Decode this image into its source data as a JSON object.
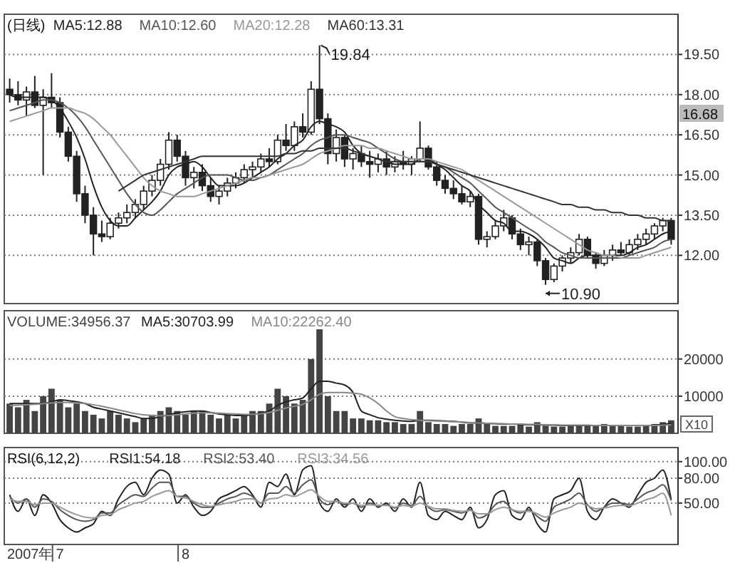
{
  "chart_data": [
    {
      "type": "candlestick",
      "title": "(日线)",
      "categories": [
        null,
        null,
        null,
        null,
        null,
        null,
        null,
        null,
        null,
        null,
        null,
        null,
        null,
        null,
        null,
        null,
        null,
        null,
        null,
        null,
        null,
        null,
        null,
        null,
        null,
        null,
        null,
        null,
        null,
        null,
        null,
        null,
        null,
        null,
        null,
        null,
        null,
        null,
        null,
        null,
        null,
        null,
        null,
        null,
        null,
        null,
        null,
        null,
        null,
        null,
        null,
        null,
        null,
        null,
        null,
        null,
        null,
        null,
        null,
        null,
        null,
        null,
        null,
        null,
        null,
        null,
        null,
        null,
        null,
        null,
        null,
        null,
        null,
        null,
        null,
        null,
        null,
        null,
        null,
        null
      ],
      "ohlc": [
        [
          18.2,
          18.6,
          17.7,
          18.0
        ],
        [
          18.0,
          18.5,
          17.6,
          17.8
        ],
        [
          17.8,
          18.3,
          17.2,
          18.1
        ],
        [
          18.1,
          18.7,
          17.5,
          17.6
        ],
        [
          17.6,
          18.2,
          15.0,
          17.9
        ],
        [
          17.9,
          18.8,
          17.5,
          17.7
        ],
        [
          17.7,
          17.9,
          16.4,
          16.6
        ],
        [
          16.6,
          16.8,
          15.5,
          15.7
        ],
        [
          15.7,
          15.9,
          14.0,
          14.3
        ],
        [
          14.3,
          14.6,
          13.2,
          13.5
        ],
        [
          13.5,
          13.8,
          12.0,
          12.8
        ],
        [
          12.8,
          13.3,
          12.5,
          12.7
        ],
        [
          12.7,
          13.4,
          12.6,
          13.2
        ],
        [
          13.2,
          13.6,
          13.0,
          13.4
        ],
        [
          13.4,
          13.9,
          13.2,
          13.6
        ],
        [
          13.6,
          14.1,
          13.4,
          13.9
        ],
        [
          13.9,
          14.6,
          13.7,
          14.4
        ],
        [
          14.4,
          15.0,
          14.2,
          14.8
        ],
        [
          14.8,
          15.6,
          14.6,
          15.4
        ],
        [
          15.4,
          16.6,
          15.2,
          16.3
        ],
        [
          16.3,
          16.5,
          15.5,
          15.7
        ],
        [
          15.7,
          15.9,
          14.6,
          14.9
        ],
        [
          14.9,
          15.3,
          14.5,
          15.1
        ],
        [
          15.1,
          15.4,
          14.4,
          14.6
        ],
        [
          14.6,
          14.9,
          14.0,
          14.2
        ],
        [
          14.2,
          14.6,
          13.9,
          14.4
        ],
        [
          14.4,
          14.9,
          14.2,
          14.7
        ],
        [
          14.7,
          15.1,
          14.5,
          14.9
        ],
        [
          14.9,
          15.4,
          14.7,
          15.2
        ],
        [
          15.2,
          15.5,
          14.9,
          15.3
        ],
        [
          15.3,
          15.8,
          15.1,
          15.6
        ],
        [
          15.6,
          16.0,
          15.3,
          15.5
        ],
        [
          15.5,
          16.5,
          15.4,
          16.3
        ],
        [
          16.3,
          16.9,
          15.9,
          16.1
        ],
        [
          16.1,
          17.0,
          15.9,
          16.8
        ],
        [
          16.8,
          17.3,
          16.4,
          16.6
        ],
        [
          16.6,
          18.5,
          16.5,
          18.2
        ],
        [
          18.2,
          19.84,
          16.9,
          17.1
        ],
        [
          17.1,
          17.3,
          15.4,
          15.8
        ],
        [
          15.8,
          16.7,
          15.5,
          16.4
        ],
        [
          16.4,
          16.5,
          15.3,
          15.6
        ],
        [
          15.6,
          16.0,
          15.2,
          15.8
        ],
        [
          15.8,
          16.1,
          15.3,
          15.5
        ],
        [
          15.5,
          15.9,
          14.9,
          15.4
        ],
        [
          15.4,
          15.8,
          15.1,
          15.6
        ],
        [
          15.6,
          15.9,
          15.0,
          15.3
        ],
        [
          15.3,
          15.7,
          15.1,
          15.5
        ],
        [
          15.5,
          15.9,
          15.2,
          15.4
        ],
        [
          15.4,
          15.7,
          15.0,
          15.6
        ],
        [
          15.6,
          17.0,
          15.5,
          16.0
        ],
        [
          16.0,
          16.1,
          15.2,
          15.3
        ],
        [
          15.3,
          15.5,
          14.6,
          14.8
        ],
        [
          14.8,
          15.0,
          14.3,
          14.5
        ],
        [
          14.5,
          14.8,
          14.1,
          14.3
        ],
        [
          14.3,
          14.6,
          13.9,
          14.0
        ],
        [
          14.0,
          14.4,
          13.8,
          14.2
        ],
        [
          14.2,
          14.3,
          12.4,
          12.6
        ],
        [
          12.6,
          12.9,
          12.3,
          12.7
        ],
        [
          12.7,
          13.3,
          12.6,
          13.1
        ],
        [
          13.1,
          13.7,
          12.9,
          13.4
        ],
        [
          13.4,
          13.5,
          12.6,
          12.8
        ],
        [
          12.8,
          13.0,
          12.2,
          12.4
        ],
        [
          12.4,
          12.7,
          12.0,
          12.5
        ],
        [
          12.5,
          12.6,
          11.6,
          11.8
        ],
        [
          11.8,
          11.9,
          10.9,
          11.1
        ],
        [
          11.1,
          11.7,
          11.0,
          11.6
        ],
        [
          11.6,
          12.0,
          11.4,
          11.9
        ],
        [
          11.9,
          12.3,
          11.7,
          12.1
        ],
        [
          12.1,
          12.8,
          12.0,
          12.6
        ],
        [
          12.6,
          12.7,
          11.9,
          12.0
        ],
        [
          12.0,
          12.1,
          11.5,
          11.7
        ],
        [
          11.7,
          12.2,
          11.6,
          12.0
        ],
        [
          12.0,
          12.4,
          11.8,
          12.2
        ],
        [
          12.2,
          12.5,
          12.0,
          12.1
        ],
        [
          12.1,
          12.6,
          12.0,
          12.4
        ],
        [
          12.4,
          12.8,
          12.2,
          12.6
        ],
        [
          12.6,
          13.0,
          12.4,
          12.8
        ],
        [
          12.8,
          13.2,
          12.6,
          13.1
        ],
        [
          13.1,
          13.4,
          12.9,
          13.3
        ],
        [
          13.3,
          13.4,
          12.4,
          12.6
        ]
      ],
      "series": [
        {
          "type": "line",
          "name": "MA5:12.88",
          "color": "#222222",
          "values": [
            18.0,
            17.9,
            17.9,
            17.9,
            17.9,
            17.8,
            17.5,
            17.0,
            16.4,
            15.6,
            14.6,
            13.8,
            13.3,
            13.1,
            13.1,
            13.4,
            13.7,
            14.0,
            14.4,
            15.0,
            15.3,
            15.4,
            15.5,
            15.3,
            14.9,
            14.6,
            14.6,
            14.6,
            14.7,
            14.9,
            15.1,
            15.3,
            15.6,
            15.8,
            16.1,
            16.3,
            16.8,
            17.0,
            16.9,
            16.8,
            16.6,
            16.1,
            15.8,
            15.7,
            15.6,
            15.5,
            15.4,
            15.4,
            15.4,
            15.6,
            15.6,
            15.4,
            15.2,
            14.9,
            14.6,
            14.4,
            13.9,
            13.6,
            13.3,
            13.2,
            12.9,
            12.9,
            12.8,
            12.6,
            12.3,
            11.9,
            11.8,
            11.7,
            11.9,
            12.0,
            12.0,
            12.0,
            12.0,
            12.0,
            12.1,
            12.3,
            12.4,
            12.6,
            12.8,
            12.9
          ]
        },
        {
          "type": "line",
          "name": "MA10:12.60",
          "color": "#555555",
          "values": [
            17.4,
            17.5,
            17.6,
            17.7,
            17.8,
            17.8,
            17.7,
            17.5,
            17.2,
            16.8,
            16.3,
            15.8,
            15.3,
            14.8,
            14.3,
            13.9,
            13.6,
            13.5,
            13.7,
            14.0,
            14.3,
            14.5,
            14.7,
            14.9,
            15.0,
            15.0,
            15.0,
            14.9,
            14.8,
            14.8,
            14.9,
            15.0,
            15.2,
            15.4,
            15.6,
            15.8,
            16.1,
            16.3,
            16.4,
            16.5,
            16.5,
            16.4,
            16.3,
            16.2,
            16.0,
            15.8,
            15.6,
            15.5,
            15.5,
            15.5,
            15.5,
            15.4,
            15.3,
            15.1,
            14.9,
            14.7,
            14.4,
            14.1,
            13.8,
            13.6,
            13.4,
            13.2,
            13.0,
            12.8,
            12.5,
            12.3,
            12.1,
            12.0,
            11.9,
            11.9,
            11.9,
            11.9,
            11.9,
            11.9,
            12.0,
            12.1,
            12.2,
            12.3,
            12.5,
            12.6
          ]
        },
        {
          "type": "line",
          "name": "MA20:12.28",
          "color": "#999999",
          "values": [
            17.0,
            17.1,
            17.2,
            17.3,
            17.4,
            17.5,
            17.5,
            17.5,
            17.4,
            17.3,
            17.1,
            16.8,
            16.5,
            16.1,
            15.7,
            15.3,
            14.9,
            14.6,
            14.4,
            14.3,
            14.2,
            14.2,
            14.2,
            14.3,
            14.4,
            14.5,
            14.6,
            14.7,
            14.8,
            14.9,
            14.9,
            15.0,
            15.1,
            15.2,
            15.3,
            15.4,
            15.6,
            15.8,
            15.9,
            16.0,
            16.1,
            16.1,
            16.1,
            16.0,
            16.0,
            15.9,
            15.8,
            15.7,
            15.6,
            15.6,
            15.6,
            15.5,
            15.4,
            15.3,
            15.2,
            15.0,
            14.8,
            14.6,
            14.4,
            14.2,
            14.0,
            13.8,
            13.6,
            13.4,
            13.2,
            13.0,
            12.8,
            12.6,
            12.4,
            12.2,
            12.1,
            12.0,
            12.0,
            11.9,
            11.9,
            11.9,
            12.0,
            12.1,
            12.2,
            12.3
          ]
        },
        {
          "type": "line",
          "name": "MA60:13.31",
          "color": "#333333",
          "values": [
            null,
            null,
            null,
            null,
            null,
            null,
            null,
            null,
            null,
            null,
            null,
            null,
            null,
            14.4,
            14.6,
            14.8,
            15.0,
            15.1,
            15.2,
            15.3,
            15.4,
            15.5,
            15.6,
            15.7,
            15.7,
            15.7,
            15.7,
            15.7,
            15.7,
            15.7,
            15.7,
            15.7,
            15.7,
            15.8,
            15.8,
            15.9,
            15.9,
            16.0,
            16.0,
            16.0,
            16.0,
            15.9,
            15.8,
            15.7,
            15.6,
            15.5,
            15.5,
            15.5,
            15.5,
            15.5,
            15.5,
            15.4,
            15.3,
            15.2,
            15.1,
            15.0,
            14.9,
            14.8,
            14.7,
            14.6,
            14.5,
            14.4,
            14.3,
            14.2,
            14.1,
            14.0,
            13.9,
            13.9,
            13.8,
            13.8,
            13.7,
            13.7,
            13.6,
            13.6,
            13.5,
            13.5,
            13.4,
            13.4,
            13.3,
            13.3
          ]
        }
      ],
      "ylim": [
        10.2,
        21.0
      ],
      "yticks": [
        {
          "value": 12,
          "label": "12.00"
        },
        {
          "value": 13.5,
          "label": "13.50"
        },
        {
          "value": 15,
          "label": "15.00"
        },
        {
          "value": 16.5,
          "label": "16.50"
        },
        {
          "value": 18,
          "label": "18.00"
        },
        {
          "value": 19.5,
          "label": "19.50"
        }
      ],
      "grid": "y",
      "legend": "top left",
      "tick_labels": "y",
      "annotations": [
        "19.84",
        "10.90",
        "16.68"
      ]
    },
    {
      "type": "bar",
      "categories": [
        null,
        null,
        null,
        null,
        null,
        null,
        null,
        null,
        null,
        null,
        null,
        null,
        null,
        null,
        null,
        null,
        null,
        null,
        null,
        null,
        null,
        null,
        null,
        null,
        null,
        null,
        null,
        null,
        null,
        null,
        null,
        null,
        null,
        null,
        null,
        null,
        null,
        null,
        null,
        null,
        null,
        null,
        null,
        null,
        null,
        null,
        null,
        null,
        null,
        null,
        null,
        null,
        null,
        null,
        null,
        null,
        null,
        null,
        null,
        null,
        null,
        null,
        null,
        null,
        null,
        null,
        null,
        null,
        null,
        null,
        null,
        null,
        null,
        null,
        null,
        null,
        null,
        null,
        null,
        null
      ],
      "series": [
        {
          "name": "VOLUME:34956.37",
          "color": "#444444",
          "values": [
            8000,
            7000,
            9000,
            6000,
            10000,
            12000,
            9000,
            7000,
            8000,
            6000,
            5000,
            4000,
            6000,
            5000,
            4000,
            3000,
            4000,
            5000,
            6000,
            7000,
            6000,
            5000,
            6000,
            6000,
            5000,
            4000,
            5000,
            4000,
            5000,
            6000,
            6000,
            8000,
            12000,
            10000,
            8000,
            9000,
            20000,
            28000,
            10000,
            6000,
            6000,
            4000,
            4000,
            3500,
            3500,
            3000,
            3000,
            2500,
            2500,
            6000,
            3000,
            2500,
            2500,
            2000,
            2500,
            2500,
            4000,
            2500,
            2000,
            2000,
            2000,
            2500,
            1800,
            3000,
            2000,
            1800,
            1800,
            2000,
            2200,
            2000,
            2000,
            2500,
            2200,
            2000,
            1800,
            1800,
            2000,
            2500,
            3000,
            3500
          ]
        },
        {
          "type": "line",
          "name": "MA5:30703.99",
          "color": "#222222",
          "values": [
            8000,
            8000,
            8000,
            8000,
            8000,
            8500,
            9000,
            8800,
            8500,
            8000,
            7000,
            6500,
            6000,
            5500,
            5000,
            4500,
            4000,
            4000,
            4500,
            5000,
            5500,
            5800,
            6000,
            6000,
            5600,
            5200,
            5000,
            4800,
            4800,
            5000,
            5500,
            6000,
            7500,
            8500,
            9000,
            9500,
            12000,
            14000,
            14000,
            13500,
            13000,
            11000,
            6000,
            5000,
            4200,
            3800,
            3500,
            3300,
            3200,
            3500,
            3500,
            3400,
            3300,
            3200,
            3000,
            2800,
            2800,
            2700,
            2600,
            2500,
            2500,
            2400,
            2300,
            2300,
            2200,
            2200,
            2100,
            2100,
            2100,
            2100,
            2100,
            2100,
            2100,
            2100,
            2100,
            2100,
            2100,
            2200,
            2400,
            2700
          ]
        },
        {
          "type": "line",
          "name": "MA10:22262.40",
          "color": "#888888",
          "values": [
            7500,
            7600,
            7700,
            7800,
            8000,
            8200,
            8300,
            8300,
            8200,
            8000,
            7700,
            7300,
            6800,
            6300,
            5800,
            5300,
            5000,
            4800,
            4700,
            4800,
            5000,
            5200,
            5400,
            5500,
            5500,
            5400,
            5300,
            5200,
            5100,
            5100,
            5300,
            5600,
            6200,
            6800,
            7300,
            7800,
            9000,
            10500,
            11000,
            11000,
            11000,
            10800,
            10500,
            9500,
            8000,
            6000,
            4500,
            4000,
            3700,
            3500,
            3400,
            3300,
            3200,
            3100,
            3000,
            2900,
            2800,
            2700,
            2600,
            2600,
            2500,
            2500,
            2400,
            2400,
            2300,
            2300,
            2200,
            2200,
            2200,
            2200,
            2100,
            2100,
            2100,
            2100,
            2100,
            2100,
            2100,
            2100,
            2200,
            2300
          ]
        }
      ],
      "ylim": [
        0,
        33000
      ],
      "yticks": [
        10000,
        20000
      ],
      "grid": "y",
      "legend": "top left",
      "tick_labels": "y",
      "annotations": [
        "X10"
      ]
    },
    {
      "type": "line",
      "title": "RSI(6,12,2)",
      "xlabel": "2007年",
      "categories": [
        null,
        null,
        null,
        null,
        null,
        null,
        "7",
        null,
        null,
        null,
        null,
        null,
        null,
        null,
        null,
        null,
        null,
        null,
        null,
        null,
        null,
        "8",
        null,
        null,
        null,
        null,
        null,
        null,
        null,
        null,
        null,
        null,
        null,
        null,
        null,
        null,
        null,
        null,
        null,
        null,
        null,
        null,
        null,
        null,
        null,
        null,
        null,
        null,
        null,
        null,
        null,
        null,
        null,
        null,
        null,
        null,
        null,
        null,
        null,
        null,
        null,
        null,
        null,
        null,
        null,
        null,
        null,
        null,
        null,
        null,
        null,
        null,
        null,
        null,
        null,
        null,
        null,
        null,
        null,
        null
      ],
      "series": [
        {
          "name": "RSI1:54.18",
          "color": "#222222",
          "values": [
            60,
            40,
            55,
            35,
            60,
            50,
            30,
            20,
            15,
            20,
            25,
            40,
            35,
            55,
            70,
            75,
            60,
            80,
            90,
            85,
            50,
            60,
            45,
            35,
            40,
            55,
            60,
            65,
            70,
            60,
            45,
            75,
            70,
            85,
            60,
            90,
            95,
            50,
            40,
            55,
            45,
            55,
            40,
            55,
            45,
            50,
            40,
            55,
            45,
            75,
            35,
            30,
            40,
            35,
            30,
            45,
            20,
            30,
            60,
            65,
            35,
            30,
            45,
            25,
            15,
            55,
            60,
            65,
            80,
            40,
            30,
            45,
            55,
            50,
            45,
            60,
            75,
            80,
            90,
            54
          ]
        },
        {
          "name": "RSI2:53.40",
          "color": "#555555",
          "values": [
            58,
            50,
            55,
            45,
            55,
            52,
            42,
            35,
            30,
            28,
            30,
            38,
            38,
            48,
            55,
            60,
            58,
            68,
            75,
            75,
            58,
            58,
            50,
            45,
            45,
            50,
            55,
            58,
            62,
            58,
            50,
            62,
            62,
            70,
            62,
            72,
            78,
            55,
            48,
            52,
            48,
            50,
            45,
            50,
            47,
            48,
            44,
            50,
            47,
            58,
            45,
            40,
            42,
            40,
            38,
            42,
            32,
            36,
            48,
            52,
            42,
            38,
            42,
            34,
            28,
            45,
            50,
            55,
            62,
            48,
            40,
            45,
            50,
            50,
            48,
            55,
            62,
            66,
            72,
            53
          ]
        },
        {
          "name": "RSI3:34.56",
          "color": "#999999",
          "values": [
            55,
            52,
            52,
            48,
            50,
            50,
            45,
            40,
            36,
            33,
            32,
            35,
            36,
            42,
            46,
            50,
            52,
            58,
            62,
            65,
            58,
            56,
            52,
            48,
            46,
            48,
            50,
            52,
            55,
            55,
            50,
            55,
            56,
            60,
            58,
            62,
            66,
            58,
            52,
            52,
            50,
            50,
            47,
            48,
            47,
            47,
            45,
            47,
            46,
            50,
            46,
            43,
            43,
            41,
            40,
            41,
            37,
            37,
            42,
            45,
            42,
            40,
            40,
            37,
            33,
            38,
            42,
            45,
            50,
            47,
            43,
            44,
            46,
            47,
            47,
            50,
            54,
            57,
            62,
            35
          ]
        }
      ],
      "ylim": [
        0,
        117
      ],
      "yticks": [
        {
          "value": 50,
          "label": "50.00"
        },
        {
          "value": 80,
          "label": "80.00"
        },
        {
          "value": 100,
          "label": "100.00"
        }
      ],
      "grid": "y",
      "legend": "top left"
    }
  ]
}
